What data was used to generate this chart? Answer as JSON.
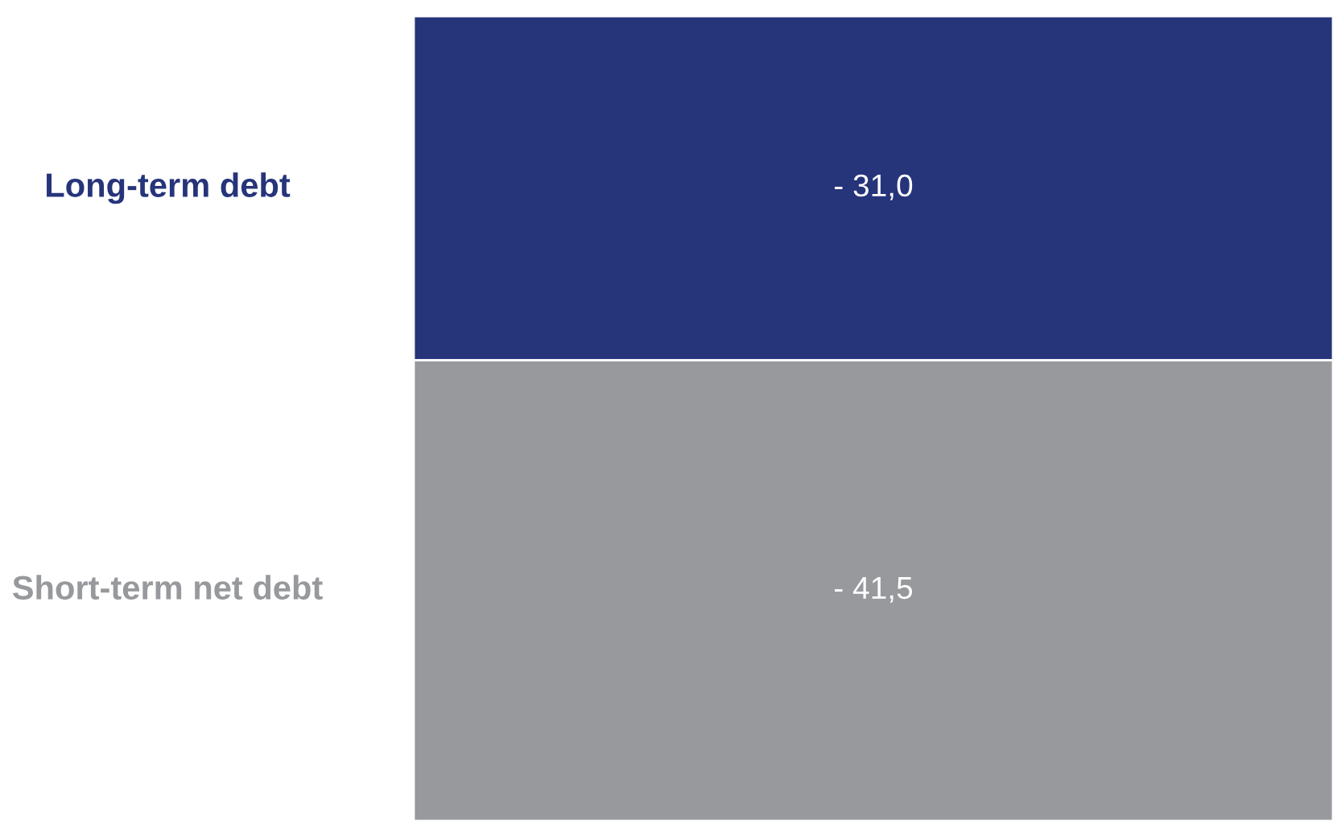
{
  "chart_data": {
    "type": "bar",
    "stacked": true,
    "categories": [
      null
    ],
    "series": [
      {
        "name": "Long-term debt",
        "color": "#26347a",
        "values": [
          -31.0
        ],
        "value_labels": [
          "- 31,0"
        ]
      },
      {
        "name": "Short-term net debt",
        "color": "#97999c",
        "values": [
          -41.5
        ],
        "value_labels": [
          "- 41,5"
        ]
      }
    ],
    "ylim": [
      -72.5,
      0
    ],
    "tick_labels": false
  }
}
